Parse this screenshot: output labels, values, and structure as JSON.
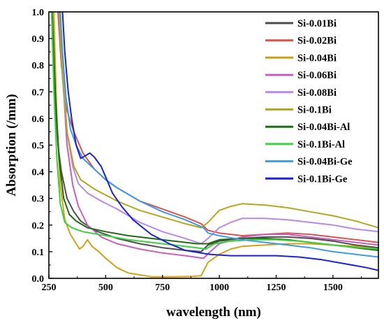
{
  "chart_data": {
    "type": "line",
    "title": "",
    "xlabel": "wavelength (nm)",
    "ylabel": "Absorption (/mm)",
    "xlim": [
      250,
      1700
    ],
    "ylim": [
      0.0,
      1.0
    ],
    "xticks": [
      250,
      500,
      750,
      1000,
      1250,
      1500
    ],
    "yticks": [
      0.0,
      0.1,
      0.2,
      0.3,
      0.4,
      0.5,
      0.6,
      0.7,
      0.8,
      0.9,
      1.0
    ],
    "ytick_labels": [
      "0.0",
      "0.1",
      "0.2",
      "0.3",
      "0.4",
      "0.5",
      "0.6",
      "0.7",
      "0.8",
      "0.9",
      "1.0"
    ],
    "grid": false,
    "legend_position": "top-right",
    "series": [
      {
        "name": "Si-0.01Bi",
        "color": "#4d4d4d",
        "points": [
          [
            262,
            1.0
          ],
          [
            275,
            0.7
          ],
          [
            290,
            0.5
          ],
          [
            305,
            0.4
          ],
          [
            330,
            0.3
          ],
          [
            360,
            0.25
          ],
          [
            390,
            0.215
          ],
          [
            450,
            0.18
          ],
          [
            550,
            0.15
          ],
          [
            650,
            0.13
          ],
          [
            750,
            0.115
          ],
          [
            850,
            0.105
          ],
          [
            920,
            0.1
          ],
          [
            950,
            0.125
          ],
          [
            1000,
            0.14
          ],
          [
            1100,
            0.15
          ],
          [
            1200,
            0.155
          ],
          [
            1300,
            0.155
          ],
          [
            1400,
            0.15
          ],
          [
            1500,
            0.14
          ],
          [
            1600,
            0.125
          ],
          [
            1700,
            0.115
          ]
        ]
      },
      {
        "name": "Si-0.02Bi",
        "color": "#d9534f",
        "points": [
          [
            290,
            1.0
          ],
          [
            305,
            0.8
          ],
          [
            330,
            0.63
          ],
          [
            360,
            0.55
          ],
          [
            400,
            0.47
          ],
          [
            450,
            0.41
          ],
          [
            500,
            0.37
          ],
          [
            550,
            0.34
          ],
          [
            650,
            0.29
          ],
          [
            750,
            0.26
          ],
          [
            850,
            0.23
          ],
          [
            920,
            0.205
          ],
          [
            950,
            0.18
          ],
          [
            1000,
            0.17
          ],
          [
            1100,
            0.16
          ],
          [
            1200,
            0.165
          ],
          [
            1300,
            0.17
          ],
          [
            1400,
            0.165
          ],
          [
            1500,
            0.155
          ],
          [
            1600,
            0.145
          ],
          [
            1700,
            0.135
          ]
        ]
      },
      {
        "name": "Si-0.04Bi",
        "color": "#d4a017",
        "points": [
          [
            272,
            1.0
          ],
          [
            285,
            0.6
          ],
          [
            300,
            0.35
          ],
          [
            320,
            0.22
          ],
          [
            345,
            0.165
          ],
          [
            370,
            0.13
          ],
          [
            385,
            0.11
          ],
          [
            400,
            0.12
          ],
          [
            420,
            0.145
          ],
          [
            440,
            0.12
          ],
          [
            470,
            0.1
          ],
          [
            500,
            0.075
          ],
          [
            550,
            0.04
          ],
          [
            600,
            0.02
          ],
          [
            700,
            0.006
          ],
          [
            800,
            0.006
          ],
          [
            880,
            0.007
          ],
          [
            920,
            0.01
          ],
          [
            950,
            0.06
          ],
          [
            1000,
            0.09
          ],
          [
            1050,
            0.11
          ],
          [
            1100,
            0.12
          ],
          [
            1200,
            0.125
          ],
          [
            1300,
            0.13
          ],
          [
            1400,
            0.13
          ],
          [
            1500,
            0.125
          ],
          [
            1600,
            0.12
          ],
          [
            1700,
            0.11
          ]
        ]
      },
      {
        "name": "Si-0.06Bi",
        "color": "#c55fbf",
        "points": [
          [
            300,
            1.0
          ],
          [
            315,
            0.7
          ],
          [
            330,
            0.5
          ],
          [
            355,
            0.35
          ],
          [
            380,
            0.27
          ],
          [
            420,
            0.2
          ],
          [
            480,
            0.155
          ],
          [
            550,
            0.13
          ],
          [
            650,
            0.11
          ],
          [
            750,
            0.095
          ],
          [
            850,
            0.085
          ],
          [
            930,
            0.075
          ],
          [
            960,
            0.1
          ],
          [
            1000,
            0.13
          ],
          [
            1100,
            0.155
          ],
          [
            1200,
            0.165
          ],
          [
            1300,
            0.165
          ],
          [
            1400,
            0.155
          ],
          [
            1500,
            0.145
          ],
          [
            1600,
            0.135
          ],
          [
            1700,
            0.125
          ]
        ]
      },
      {
        "name": "Si-0.08Bi",
        "color": "#b989e6",
        "points": [
          [
            300,
            1.0
          ],
          [
            315,
            0.75
          ],
          [
            330,
            0.55
          ],
          [
            355,
            0.42
          ],
          [
            380,
            0.355
          ],
          [
            420,
            0.32
          ],
          [
            480,
            0.29
          ],
          [
            550,
            0.26
          ],
          [
            650,
            0.21
          ],
          [
            750,
            0.175
          ],
          [
            850,
            0.15
          ],
          [
            920,
            0.13
          ],
          [
            950,
            0.15
          ],
          [
            1000,
            0.19
          ],
          [
            1050,
            0.21
          ],
          [
            1100,
            0.225
          ],
          [
            1200,
            0.225
          ],
          [
            1300,
            0.22
          ],
          [
            1400,
            0.21
          ],
          [
            1500,
            0.2
          ],
          [
            1600,
            0.185
          ],
          [
            1700,
            0.175
          ]
        ]
      },
      {
        "name": "Si-0.1Bi",
        "color": "#b6a61f",
        "points": [
          [
            295,
            1.0
          ],
          [
            310,
            0.75
          ],
          [
            330,
            0.55
          ],
          [
            360,
            0.42
          ],
          [
            390,
            0.37
          ],
          [
            450,
            0.335
          ],
          [
            550,
            0.29
          ],
          [
            650,
            0.255
          ],
          [
            750,
            0.23
          ],
          [
            850,
            0.205
          ],
          [
            920,
            0.19
          ],
          [
            950,
            0.21
          ],
          [
            1000,
            0.255
          ],
          [
            1050,
            0.27
          ],
          [
            1100,
            0.28
          ],
          [
            1200,
            0.275
          ],
          [
            1300,
            0.265
          ],
          [
            1400,
            0.25
          ],
          [
            1500,
            0.235
          ],
          [
            1600,
            0.215
          ],
          [
            1700,
            0.19
          ]
        ]
      },
      {
        "name": "Si-0.04Bi-Al",
        "color": "#1e6b12",
        "points": [
          [
            265,
            1.0
          ],
          [
            278,
            0.7
          ],
          [
            295,
            0.45
          ],
          [
            315,
            0.3
          ],
          [
            340,
            0.24
          ],
          [
            370,
            0.215
          ],
          [
            420,
            0.19
          ],
          [
            500,
            0.175
          ],
          [
            600,
            0.16
          ],
          [
            700,
            0.15
          ],
          [
            800,
            0.14
          ],
          [
            900,
            0.13
          ],
          [
            950,
            0.13
          ],
          [
            1000,
            0.145
          ],
          [
            1100,
            0.15
          ],
          [
            1200,
            0.15
          ],
          [
            1300,
            0.145
          ],
          [
            1400,
            0.135
          ],
          [
            1500,
            0.125
          ],
          [
            1600,
            0.115
          ],
          [
            1700,
            0.105
          ]
        ]
      },
      {
        "name": "Si-0.1Bi-Al",
        "color": "#3ecf3e",
        "points": [
          [
            262,
            1.0
          ],
          [
            272,
            0.7
          ],
          [
            285,
            0.45
          ],
          [
            300,
            0.28
          ],
          [
            320,
            0.21
          ],
          [
            350,
            0.19
          ],
          [
            400,
            0.175
          ],
          [
            500,
            0.16
          ],
          [
            600,
            0.145
          ],
          [
            700,
            0.135
          ],
          [
            800,
            0.125
          ],
          [
            900,
            0.115
          ],
          [
            940,
            0.11
          ],
          [
            980,
            0.13
          ],
          [
            1050,
            0.14
          ],
          [
            1150,
            0.145
          ],
          [
            1250,
            0.145
          ],
          [
            1350,
            0.14
          ],
          [
            1450,
            0.13
          ],
          [
            1550,
            0.12
          ],
          [
            1700,
            0.11
          ]
        ]
      },
      {
        "name": "Si-0.04Bi-Ge",
        "color": "#3e9be5",
        "points": [
          [
            300,
            1.0
          ],
          [
            310,
            0.85
          ],
          [
            325,
            0.68
          ],
          [
            345,
            0.56
          ],
          [
            370,
            0.5
          ],
          [
            400,
            0.45
          ],
          [
            450,
            0.41
          ],
          [
            500,
            0.37
          ],
          [
            550,
            0.34
          ],
          [
            650,
            0.29
          ],
          [
            750,
            0.25
          ],
          [
            850,
            0.22
          ],
          [
            930,
            0.19
          ],
          [
            950,
            0.17
          ],
          [
            1000,
            0.16
          ],
          [
            1100,
            0.145
          ],
          [
            1200,
            0.135
          ],
          [
            1300,
            0.125
          ],
          [
            1400,
            0.115
          ],
          [
            1500,
            0.1
          ],
          [
            1600,
            0.09
          ],
          [
            1700,
            0.08
          ]
        ]
      },
      {
        "name": "Si-0.1Bi-Ge",
        "color": "#1a22d4",
        "points": [
          [
            310,
            1.0
          ],
          [
            320,
            0.85
          ],
          [
            335,
            0.7
          ],
          [
            350,
            0.6
          ],
          [
            370,
            0.5
          ],
          [
            390,
            0.45
          ],
          [
            410,
            0.46
          ],
          [
            430,
            0.47
          ],
          [
            450,
            0.455
          ],
          [
            480,
            0.42
          ],
          [
            500,
            0.38
          ],
          [
            530,
            0.32
          ],
          [
            570,
            0.27
          ],
          [
            620,
            0.22
          ],
          [
            700,
            0.165
          ],
          [
            780,
            0.13
          ],
          [
            850,
            0.105
          ],
          [
            920,
            0.095
          ],
          [
            960,
            0.09
          ],
          [
            1050,
            0.085
          ],
          [
            1150,
            0.085
          ],
          [
            1250,
            0.085
          ],
          [
            1350,
            0.08
          ],
          [
            1450,
            0.07
          ],
          [
            1550,
            0.055
          ],
          [
            1650,
            0.04
          ],
          [
            1700,
            0.03
          ]
        ]
      }
    ]
  }
}
